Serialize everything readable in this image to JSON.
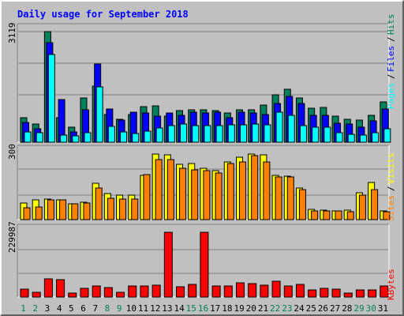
{
  "chart_data": [
    {
      "type": "bar",
      "title": "Daily usage for September 2018",
      "categories": [
        "1",
        "2",
        "3",
        "4",
        "5",
        "6",
        "7",
        "8",
        "9",
        "10",
        "11",
        "12",
        "13",
        "14",
        "15",
        "16",
        "17",
        "18",
        "19",
        "20",
        "21",
        "22",
        "23",
        "24",
        "25",
        "26",
        "27",
        "28",
        "29",
        "30",
        "31"
      ],
      "weekend_days": [
        "1",
        "2",
        "8",
        "9",
        "15",
        "16",
        "22",
        "23",
        "29",
        "30"
      ],
      "max_label": "3119",
      "ylim": [
        0,
        3119
      ],
      "series": [
        {
          "name": "Hits",
          "color": "#00805C",
          "values": [
            700,
            520,
            3119,
            680,
            420,
            1250,
            1580,
            780,
            640,
            780,
            1000,
            1020,
            740,
            900,
            920,
            910,
            900,
            820,
            920,
            920,
            1050,
            1340,
            1500,
            1250,
            950,
            980,
            740,
            640,
            620,
            760,
            1130
          ]
        },
        {
          "name": "Files",
          "color": "#0000FF",
          "values": [
            560,
            380,
            2800,
            1200,
            290,
            920,
            2200,
            940,
            620,
            840,
            830,
            740,
            820,
            760,
            840,
            830,
            840,
            700,
            840,
            820,
            780,
            1090,
            1290,
            1090,
            760,
            760,
            540,
            520,
            430,
            610,
            930
          ]
        },
        {
          "name": "Pages",
          "color": "#00FFFF",
          "values": [
            300,
            260,
            2470,
            200,
            170,
            260,
            1560,
            440,
            300,
            250,
            320,
            390,
            470,
            520,
            460,
            460,
            470,
            480,
            500,
            520,
            480,
            840,
            750,
            460,
            430,
            420,
            260,
            230,
            210,
            260,
            380
          ]
        }
      ]
    },
    {
      "type": "bar",
      "categories": [
        "1",
        "2",
        "3",
        "4",
        "5",
        "6",
        "7",
        "8",
        "9",
        "10",
        "11",
        "12",
        "13",
        "14",
        "15",
        "16",
        "17",
        "18",
        "19",
        "20",
        "21",
        "22",
        "23",
        "24",
        "25",
        "26",
        "27",
        "28",
        "29",
        "30",
        "31"
      ],
      "max_label": "300",
      "ylim": [
        0,
        300
      ],
      "series": [
        {
          "name": "Visits",
          "color": "#FFFF00",
          "values": [
            75,
            89,
            93,
            89,
            71,
            79,
            163,
            117,
            110,
            110,
            199,
            295,
            294,
            249,
            252,
            231,
            220,
            260,
            281,
            297,
            292,
            199,
            198,
            144,
            48,
            43,
            41,
            43,
            123,
            167,
            38
          ]
        },
        {
          "name": "Sites",
          "color": "#FF8000",
          "values": [
            53,
            56,
            89,
            88,
            70,
            76,
            144,
            96,
            92,
            93,
            202,
            271,
            270,
            232,
            224,
            221,
            211,
            252,
            262,
            289,
            259,
            194,
            193,
            136,
            41,
            40,
            38,
            36,
            111,
            137,
            35
          ]
        }
      ]
    },
    {
      "type": "bar",
      "categories": [
        "1",
        "2",
        "3",
        "4",
        "5",
        "6",
        "7",
        "8",
        "9",
        "10",
        "11",
        "12",
        "13",
        "14",
        "15",
        "16",
        "17",
        "18",
        "19",
        "20",
        "21",
        "22",
        "23",
        "24",
        "25",
        "26",
        "27",
        "28",
        "29",
        "30",
        "31"
      ],
      "max_label": "229987",
      "ylim": [
        0,
        229987
      ],
      "series": [
        {
          "name": "KBytes",
          "color": "#FF0000",
          "values": [
            28000,
            17000,
            65000,
            62000,
            13000,
            30000,
            40000,
            35000,
            18000,
            38000,
            40000,
            42000,
            229987,
            36000,
            44000,
            229987,
            40000,
            38000,
            50000,
            49000,
            43000,
            55000,
            38000,
            44000,
            26000,
            31000,
            29000,
            13000,
            25000,
            26000,
            40000
          ]
        }
      ]
    }
  ]
}
